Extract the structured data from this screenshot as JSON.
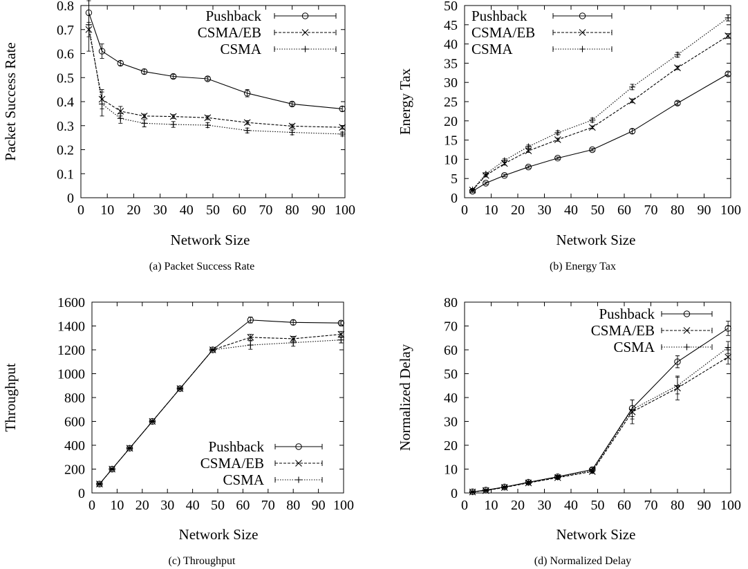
{
  "figure": {
    "x_values": [
      3,
      8,
      15,
      24,
      35,
      48,
      63,
      80,
      99
    ]
  },
  "chart_data": [
    {
      "type": "line",
      "caption": "(a) Packet Success Rate",
      "xlabel": "Network Size",
      "ylabel": "Packet Success Rate",
      "xlim": [
        0,
        100
      ],
      "ylim": [
        0,
        0.8
      ],
      "xticks": [
        0,
        10,
        20,
        30,
        40,
        50,
        60,
        70,
        80,
        90,
        100
      ],
      "yticks": [
        0,
        0.1,
        0.2,
        0.3,
        0.4,
        0.5,
        0.6,
        0.7,
        0.8
      ],
      "grid": false,
      "legend": "top-right",
      "x": [
        3,
        8,
        15,
        24,
        35,
        48,
        63,
        80,
        99
      ],
      "series": [
        {
          "name": "Pushback",
          "marker": "circle",
          "dash": "solid",
          "values": [
            0.77,
            0.61,
            0.56,
            0.525,
            0.505,
            0.495,
            0.435,
            0.39,
            0.37
          ],
          "errors": [
            0.05,
            0.03,
            0.01,
            0.01,
            0.008,
            0.008,
            0.015,
            0.008,
            0.01
          ]
        },
        {
          "name": "CSMA/EB",
          "marker": "x",
          "dash": "dashed",
          "values": [
            0.7,
            0.41,
            0.36,
            0.34,
            0.338,
            0.333,
            0.313,
            0.298,
            0.293
          ],
          "errors": [
            0.03,
            0.04,
            0.02,
            0.008,
            0.008,
            0.008,
            0.008,
            0.008,
            0.008
          ]
        },
        {
          "name": "CSMA",
          "marker": "plus",
          "dash": "dotted",
          "values": [
            0.72,
            0.39,
            0.33,
            0.31,
            0.305,
            0.302,
            0.28,
            0.272,
            0.265
          ],
          "errors": [
            0.11,
            0.05,
            0.02,
            0.015,
            0.012,
            0.01,
            0.01,
            0.01,
            0.008
          ]
        }
      ]
    },
    {
      "type": "line",
      "caption": "(b) Energy Tax",
      "xlabel": "Network Size",
      "ylabel": "Energy Tax",
      "xlim": [
        0,
        100
      ],
      "ylim": [
        0,
        50
      ],
      "xticks": [
        0,
        10,
        20,
        30,
        40,
        50,
        60,
        70,
        80,
        90,
        100
      ],
      "yticks": [
        0,
        5,
        10,
        15,
        20,
        25,
        30,
        35,
        40,
        45,
        50
      ],
      "grid": false,
      "legend": "top-left",
      "x": [
        3,
        8,
        15,
        24,
        35,
        48,
        63,
        80,
        99
      ],
      "series": [
        {
          "name": "Pushback",
          "marker": "circle",
          "dash": "solid",
          "values": [
            1.7,
            3.8,
            5.8,
            8.0,
            10.3,
            12.5,
            17.3,
            24.6,
            32.2
          ],
          "errors": [
            0.3,
            0.3,
            0.3,
            0.3,
            0.3,
            0.3,
            0.6,
            0.5,
            0.5
          ]
        },
        {
          "name": "CSMA/EB",
          "marker": "x",
          "dash": "dashed",
          "values": [
            2.0,
            5.8,
            8.9,
            12.2,
            15.1,
            18.3,
            25.2,
            33.8,
            42.1
          ],
          "errors": [
            0.3,
            0.4,
            0.4,
            0.4,
            0.4,
            0.4,
            0.5,
            0.5,
            0.6
          ]
        },
        {
          "name": "CSMA",
          "marker": "plus",
          "dash": "dotted",
          "values": [
            2.1,
            6.2,
            9.7,
            13.3,
            16.9,
            20.2,
            28.8,
            37.2,
            46.8
          ],
          "errors": [
            0.3,
            0.4,
            0.4,
            0.4,
            0.5,
            0.5,
            0.7,
            0.6,
            0.8
          ]
        }
      ]
    },
    {
      "type": "line",
      "caption": "(c) Throughput",
      "xlabel": "Network Size",
      "ylabel": "Throughput",
      "xlim": [
        0,
        100
      ],
      "ylim": [
        0,
        1600
      ],
      "xticks": [
        0,
        10,
        20,
        30,
        40,
        50,
        60,
        70,
        80,
        90,
        100
      ],
      "yticks": [
        0,
        200,
        400,
        600,
        800,
        1000,
        1200,
        1400,
        1600
      ],
      "grid": false,
      "legend": "bottom-right",
      "x": [
        3,
        8,
        15,
        24,
        35,
        48,
        63,
        80,
        99
      ],
      "series": [
        {
          "name": "Pushback",
          "marker": "circle",
          "dash": "solid",
          "values": [
            75,
            200,
            375,
            600,
            875,
            1200,
            1450,
            1430,
            1425
          ],
          "errors": [
            5,
            5,
            5,
            5,
            5,
            5,
            25,
            20,
            15
          ]
        },
        {
          "name": "CSMA/EB",
          "marker": "x",
          "dash": "dashed",
          "values": [
            75,
            200,
            375,
            600,
            875,
            1200,
            1305,
            1293,
            1330
          ],
          "errors": [
            5,
            5,
            5,
            5,
            5,
            5,
            25,
            20,
            25
          ]
        },
        {
          "name": "CSMA",
          "marker": "plus",
          "dash": "dotted",
          "values": [
            75,
            200,
            375,
            600,
            875,
            1200,
            1240,
            1260,
            1283
          ],
          "errors": [
            5,
            5,
            5,
            5,
            5,
            5,
            35,
            30,
            25
          ]
        }
      ]
    },
    {
      "type": "line",
      "caption": "(d) Normalized Delay",
      "xlabel": "Network Size",
      "ylabel": "Normalized Delay",
      "xlim": [
        0,
        100
      ],
      "ylim": [
        0,
        80
      ],
      "xticks": [
        0,
        10,
        20,
        30,
        40,
        50,
        60,
        70,
        80,
        90,
        100
      ],
      "yticks": [
        0,
        10,
        20,
        30,
        40,
        50,
        60,
        70,
        80
      ],
      "grid": false,
      "legend": "top-right",
      "x": [
        3,
        8,
        15,
        24,
        35,
        48,
        63,
        80,
        99
      ],
      "series": [
        {
          "name": "Pushback",
          "marker": "circle",
          "dash": "solid",
          "values": [
            0.5,
            1.2,
            2.5,
            4.5,
            6.8,
            9.8,
            35.5,
            55.0,
            69.0
          ],
          "errors": [
            0.3,
            0.3,
            0.4,
            0.5,
            0.6,
            0.8,
            3.5,
            2.5,
            3.0
          ]
        },
        {
          "name": "CSMA/EB",
          "marker": "x",
          "dash": "dashed",
          "values": [
            0.4,
            1.0,
            2.3,
            4.2,
            6.4,
            9.0,
            34.0,
            44.0,
            57.0
          ],
          "errors": [
            0.3,
            0.3,
            0.4,
            0.5,
            0.6,
            0.8,
            5.0,
            5.0,
            3.0
          ]
        },
        {
          "name": "CSMA",
          "marker": "plus",
          "dash": "dotted",
          "values": [
            0.4,
            1.1,
            2.4,
            4.3,
            6.6,
            9.3,
            35.0,
            45.0,
            61.0
          ],
          "errors": [
            0.3,
            0.3,
            0.4,
            0.5,
            0.6,
            0.8,
            4.0,
            3.5,
            2.5
          ]
        }
      ]
    }
  ]
}
